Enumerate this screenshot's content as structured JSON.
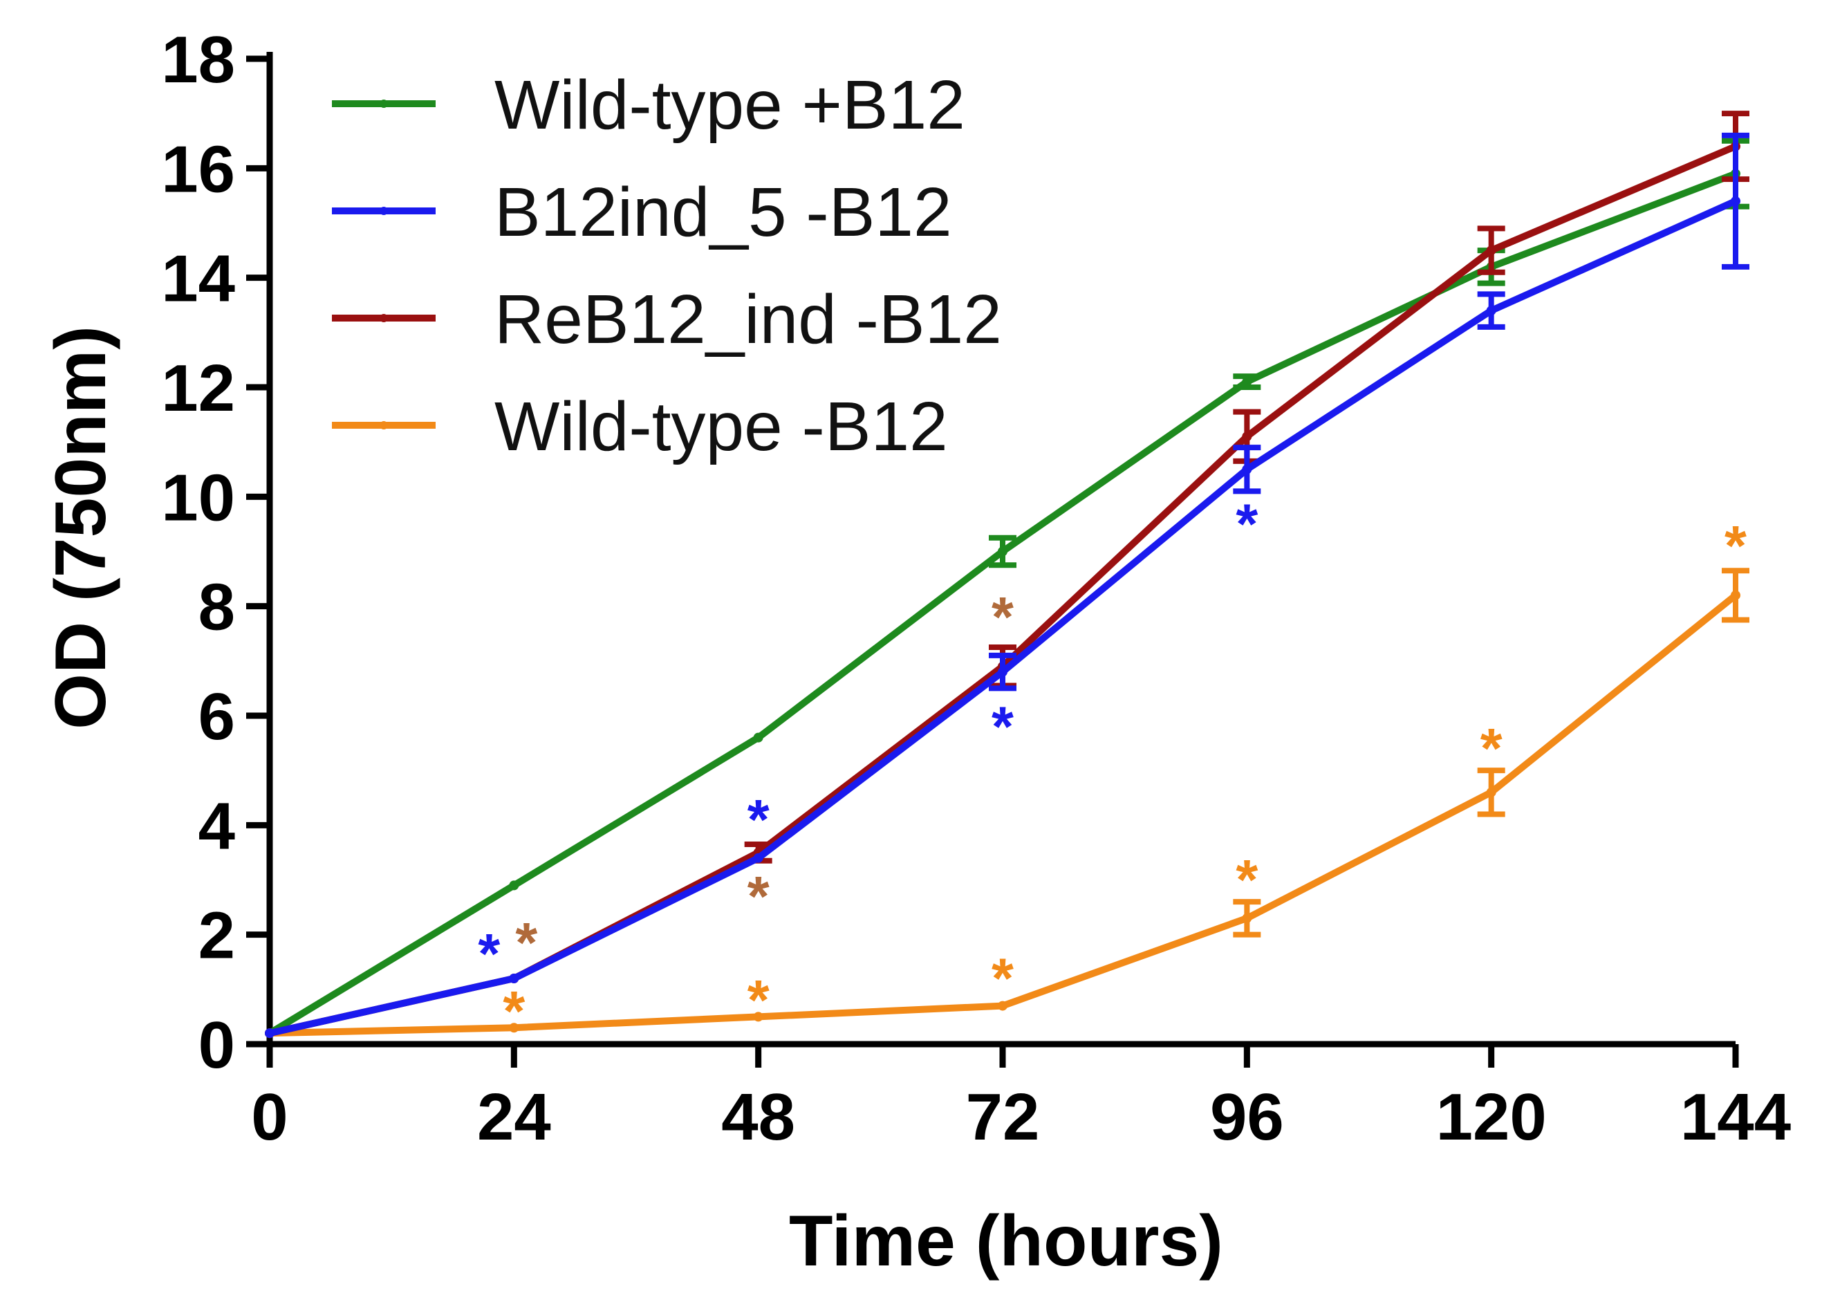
{
  "chart_data": {
    "type": "line",
    "title": "",
    "xlabel": "Time (hours)",
    "ylabel": "OD (750nm)",
    "xlim": [
      0,
      144
    ],
    "ylim": [
      0,
      18
    ],
    "x": [
      0,
      24,
      48,
      72,
      96,
      120,
      144
    ],
    "xticks": [
      "0",
      "24",
      "48",
      "72",
      "96",
      "120",
      "144"
    ],
    "yticks": [
      "0",
      "2",
      "4",
      "6",
      "8",
      "10",
      "12",
      "14",
      "16",
      "18"
    ],
    "grid": false,
    "legend_position": "top-left",
    "series": [
      {
        "name": "Wild-type +B12",
        "color": "#1e8a1e",
        "values": [
          0.2,
          2.9,
          5.6,
          9.0,
          12.1,
          14.2,
          15.9
        ],
        "errors": [
          0,
          0,
          0,
          0.25,
          0.1,
          0.3,
          0.6
        ]
      },
      {
        "name": "B12ind_5 -B12",
        "color": "#1a1aee",
        "values": [
          0.2,
          1.2,
          3.4,
          6.8,
          10.5,
          13.4,
          15.4
        ],
        "errors": [
          0,
          0,
          0,
          0.3,
          0.4,
          0.3,
          1.2
        ]
      },
      {
        "name": "ReB12_ind -B12",
        "color": "#9a1010",
        "values": [
          0.2,
          1.2,
          3.5,
          6.9,
          11.1,
          14.5,
          16.4
        ],
        "errors": [
          0,
          0,
          0.15,
          0.35,
          0.45,
          0.4,
          0.6
        ]
      },
      {
        "name": "Wild-type -B12",
        "color": "#f28a18",
        "values": [
          0.2,
          0.3,
          0.5,
          0.7,
          2.3,
          4.6,
          8.2
        ],
        "errors": [
          0,
          0,
          0,
          0,
          0.3,
          0.4,
          0.45
        ]
      }
    ],
    "annotations": [
      {
        "text": "*",
        "x": 24,
        "y": 1.65,
        "dx": -2,
        "color": "#1a1aee"
      },
      {
        "text": "*",
        "x": 24,
        "y": 1.85,
        "dx": 1,
        "color": "#b06a3a"
      },
      {
        "text": "*",
        "x": 24,
        "y": 0.6,
        "dx": 0,
        "color": "#f28a18"
      },
      {
        "text": "*",
        "x": 48,
        "y": 4.1,
        "dx": 0,
        "color": "#1a1aee"
      },
      {
        "text": "*",
        "x": 48,
        "y": 2.7,
        "dx": 0,
        "color": "#b06a3a"
      },
      {
        "text": "*",
        "x": 48,
        "y": 0.8,
        "dx": 0,
        "color": "#f28a18"
      },
      {
        "text": "*",
        "x": 72,
        "y": 7.8,
        "dx": 0,
        "color": "#b06a3a"
      },
      {
        "text": "*",
        "x": 72,
        "y": 5.8,
        "dx": 0,
        "color": "#1a1aee"
      },
      {
        "text": "*",
        "x": 72,
        "y": 1.2,
        "dx": 0,
        "color": "#f28a18"
      },
      {
        "text": "*",
        "x": 96,
        "y": 9.5,
        "dx": 0,
        "color": "#1a1aee"
      },
      {
        "text": "*",
        "x": 96,
        "y": 3.0,
        "dx": 0,
        "color": "#f28a18"
      },
      {
        "text": "*",
        "x": 120,
        "y": 5.4,
        "dx": 0,
        "color": "#f28a18"
      },
      {
        "text": "*",
        "x": 144,
        "y": 9.1,
        "dx": 0,
        "color": "#f28a18"
      }
    ]
  }
}
